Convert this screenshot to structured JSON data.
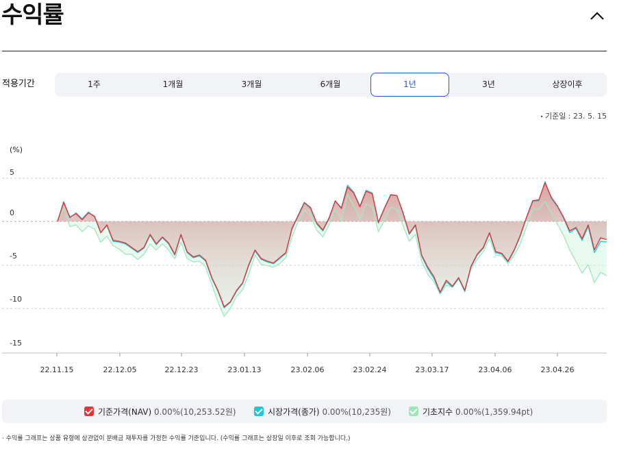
{
  "page": {
    "title": "수익률",
    "collapse_icon": "chevron-up-icon"
  },
  "period": {
    "label": "적용기간",
    "options": [
      "1주",
      "1개월",
      "3개월",
      "6개월",
      "1년",
      "3년",
      "상장이후"
    ],
    "selected": "1년"
  },
  "base_date": "기준일 : 23. 5. 15",
  "chart_data": {
    "type": "area",
    "unit_label": "(%)",
    "y_ticks": [
      "5",
      "0",
      "-5",
      "-10",
      "-15"
    ],
    "ylim": [
      -15,
      5
    ],
    "x_ticks": [
      "22.11.15",
      "22.12.05",
      "22.12.23",
      "23.01.13",
      "23.02.06",
      "23.02.24",
      "23.03.17",
      "23.04.06",
      "23.04.26"
    ],
    "grid": "horizontal dashed",
    "series": [
      {
        "name": "기준가격(NAV)",
        "color": "#e0363b",
        "values": [
          0.0,
          2.2,
          0.5,
          0.9,
          0.2,
          1.0,
          0.6,
          -1.3,
          -0.4,
          -2.2,
          -2.3,
          -2.5,
          -3.0,
          -3.5,
          -3.0,
          -1.5,
          -2.6,
          -1.8,
          -2.5,
          -3.8,
          -1.5,
          -3.5,
          -4.1,
          -3.9,
          -4.5,
          -6.5,
          -8.0,
          -9.9,
          -9.3,
          -8.0,
          -7.1,
          -5.0,
          -3.3,
          -4.3,
          -4.6,
          -4.8,
          -4.2,
          -3.6,
          -0.8,
          0.7,
          2.2,
          1.6,
          -0.2,
          -1.0,
          0.4,
          2.4,
          1.5,
          4.0,
          3.3,
          1.7,
          3.5,
          3.2,
          -0.1,
          1.6,
          3.1,
          3.0,
          1.0,
          -1.4,
          -0.4,
          -3.9,
          -5.3,
          -6.4,
          -8.2,
          -6.8,
          -7.5,
          -6.5,
          -8.0,
          -5.2,
          -3.8,
          -3.0,
          -1.3,
          -3.5,
          -3.7,
          -4.6,
          -3.3,
          -1.6,
          0.5,
          2.4,
          2.5,
          4.5,
          2.8,
          1.8,
          0.5,
          -1.1,
          -0.7,
          -2.0,
          -0.4,
          -3.3,
          -1.9,
          -2.1
        ]
      },
      {
        "name": "시장가격(종가)",
        "color": "#1fd1d8",
        "values": [
          0.0,
          2.3,
          0.4,
          1.0,
          0.3,
          1.1,
          0.5,
          -1.3,
          -0.5,
          -2.3,
          -2.4,
          -2.6,
          -3.1,
          -3.6,
          -3.1,
          -1.6,
          -2.7,
          -1.9,
          -2.6,
          -3.9,
          -1.6,
          -3.6,
          -4.2,
          -4.0,
          -4.6,
          -6.6,
          -8.1,
          -10.0,
          -9.4,
          -8.1,
          -7.2,
          -5.1,
          -3.4,
          -4.4,
          -4.7,
          -4.9,
          -4.3,
          -3.7,
          -0.9,
          0.6,
          2.1,
          1.5,
          -0.3,
          -1.1,
          0.3,
          2.3,
          1.6,
          4.2,
          3.4,
          1.8,
          3.6,
          3.3,
          -0.2,
          1.5,
          3.0,
          3.0,
          0.9,
          -1.5,
          -0.5,
          -4.0,
          -5.5,
          -6.6,
          -8.3,
          -7.0,
          -7.6,
          -6.6,
          -8.1,
          -5.3,
          -3.9,
          -3.1,
          -1.4,
          -3.6,
          -3.8,
          -4.7,
          -3.4,
          -1.7,
          0.4,
          2.3,
          2.4,
          4.6,
          2.7,
          1.7,
          0.4,
          -1.3,
          -0.8,
          -2.2,
          -0.6,
          -3.6,
          -2.3,
          -2.4
        ]
      },
      {
        "name": "기초지수",
        "color": "#a6e7bf",
        "values": [
          0.0,
          1.5,
          -0.6,
          -0.4,
          -1.2,
          -0.5,
          -0.9,
          -2.4,
          -1.7,
          -2.8,
          -3.2,
          -3.8,
          -3.8,
          -4.4,
          -3.8,
          -2.6,
          -3.3,
          -2.6,
          -3.3,
          -4.3,
          -2.4,
          -4.3,
          -4.7,
          -4.6,
          -5.3,
          -7.3,
          -9.3,
          -11.0,
          -10.1,
          -8.7,
          -7.9,
          -6.1,
          -3.9,
          -5.0,
          -5.1,
          -5.3,
          -4.9,
          -4.2,
          -1.8,
          0.0,
          1.3,
          0.7,
          -1.0,
          -1.8,
          -0.4,
          1.4,
          0.0,
          3.1,
          1.8,
          0.2,
          2.0,
          1.7,
          -1.2,
          0.2,
          1.6,
          1.4,
          -0.5,
          -2.3,
          -1.5,
          -4.6,
          -6.1,
          -7.0,
          -8.4,
          -7.4,
          -7.6,
          -6.7,
          -7.9,
          -5.5,
          -4.4,
          -3.5,
          -2.0,
          -3.9,
          -4.0,
          -4.9,
          -3.9,
          -2.6,
          -0.6,
          1.4,
          1.4,
          2.3,
          1.0,
          -0.3,
          -1.6,
          -3.3,
          -4.6,
          -6.0,
          -5.0,
          -7.1,
          -5.9,
          -6.3
        ]
      }
    ]
  },
  "legend": {
    "items": [
      {
        "label": "기준가격(NAV)",
        "value": "0.00%(10,253.52원)",
        "color": "#e0363b"
      },
      {
        "label": "시장가격(종가)",
        "value": "0.00%(10,235원)",
        "color": "#1fc8d0"
      },
      {
        "label": "기초지수",
        "value": "0.00%(1,359.94pt)",
        "color": "#9fe6b8"
      }
    ]
  },
  "note": "수익률 그래프는 상품 유형에 상관없이 분배금 재투자를 가정한 수익률 기준입니다. (수익률 그래프는 상장일 이후로 조회 가능합니다.)"
}
